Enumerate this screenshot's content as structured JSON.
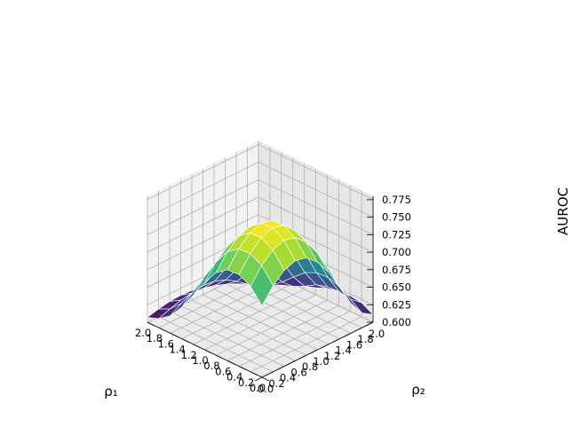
{
  "chart_data": {
    "type": "surface",
    "title": "",
    "xlabel": "ρ₁",
    "ylabel": "ρ₂",
    "zlabel": "AUROC",
    "x": [
      0.0,
      0.2,
      0.4,
      0.6,
      0.8,
      1.0,
      1.2,
      1.4,
      1.6,
      1.8,
      2.0
    ],
    "y": [
      0.0,
      0.2,
      0.4,
      0.6,
      0.8,
      1.0,
      1.2,
      1.4,
      1.6,
      1.8,
      2.0
    ],
    "z": [
      [
        0.702,
        0.723,
        0.737,
        0.743,
        0.739,
        0.725,
        0.703,
        0.673,
        0.643,
        0.621,
        0.611
      ],
      [
        0.722,
        0.744,
        0.758,
        0.764,
        0.76,
        0.746,
        0.723,
        0.692,
        0.659,
        0.633,
        0.62
      ],
      [
        0.731,
        0.753,
        0.768,
        0.774,
        0.77,
        0.755,
        0.732,
        0.699,
        0.664,
        0.636,
        0.622
      ],
      [
        0.73,
        0.752,
        0.767,
        0.773,
        0.769,
        0.754,
        0.731,
        0.698,
        0.663,
        0.635,
        0.621
      ],
      [
        0.718,
        0.74,
        0.754,
        0.76,
        0.756,
        0.742,
        0.719,
        0.688,
        0.655,
        0.63,
        0.617
      ],
      [
        0.697,
        0.717,
        0.731,
        0.737,
        0.733,
        0.72,
        0.699,
        0.67,
        0.641,
        0.62,
        0.61
      ],
      [
        0.67,
        0.688,
        0.7,
        0.706,
        0.702,
        0.691,
        0.673,
        0.648,
        0.626,
        0.612,
        0.605
      ],
      [
        0.645,
        0.659,
        0.668,
        0.673,
        0.67,
        0.661,
        0.647,
        0.629,
        0.614,
        0.606,
        0.603
      ],
      [
        0.625,
        0.635,
        0.642,
        0.645,
        0.643,
        0.637,
        0.627,
        0.615,
        0.607,
        0.603,
        0.602
      ],
      [
        0.613,
        0.619,
        0.624,
        0.626,
        0.625,
        0.621,
        0.615,
        0.608,
        0.603,
        0.601,
        0.601
      ],
      [
        0.607,
        0.611,
        0.614,
        0.615,
        0.614,
        0.612,
        0.608,
        0.604,
        0.602,
        0.601,
        0.6
      ]
    ],
    "xticks": [
      "0.0",
      "0.2",
      "0.4",
      "0.6",
      "0.8",
      "1.0",
      "1.2",
      "1.4",
      "1.6",
      "1.8",
      "2.0"
    ],
    "yticks": [
      "0.0",
      "0.2",
      "0.4",
      "0.6",
      "0.8",
      "1.0",
      "1.2",
      "1.4",
      "1.6",
      "1.8",
      "2.0"
    ],
    "zticks": [
      "0.600",
      "0.625",
      "0.650",
      "0.675",
      "0.700",
      "0.725",
      "0.750",
      "0.775"
    ],
    "xlim": [
      0,
      2
    ],
    "ylim": [
      0,
      2
    ],
    "zlim": [
      0.6,
      0.78
    ],
    "colormap": "viridis",
    "grid": true
  }
}
